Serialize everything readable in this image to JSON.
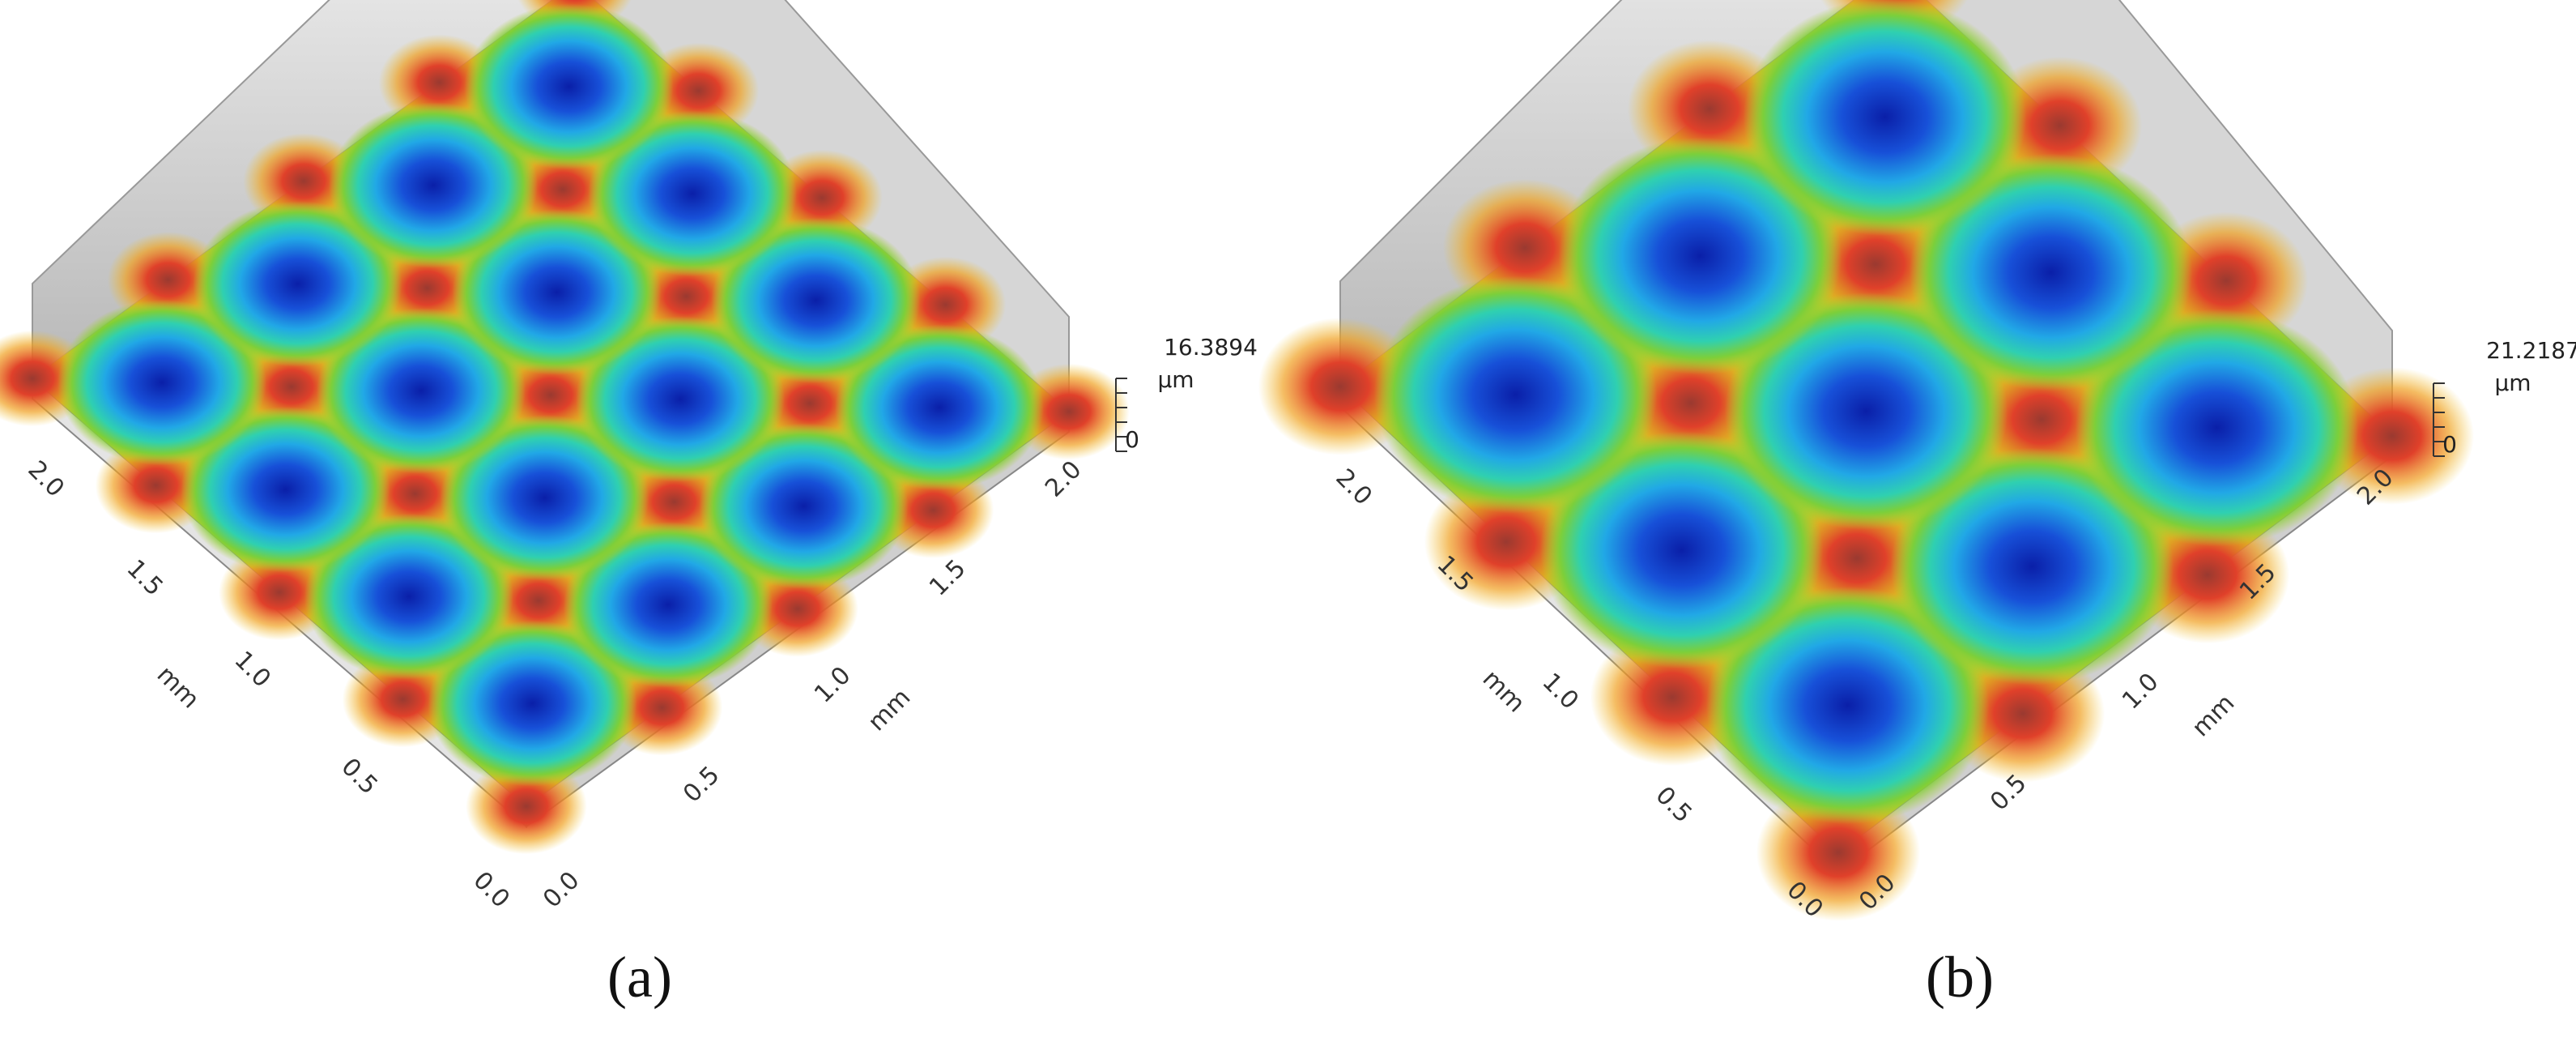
{
  "panels": [
    {
      "caption": "(a)",
      "z_max": "16.3894",
      "z_unit": "µm",
      "z_min": "0",
      "left_axis": {
        "ticks": [
          "0.0",
          "0.5",
          "1.0",
          "1.5",
          "2.0"
        ],
        "label": "mm"
      },
      "right_axis": {
        "ticks": [
          "0.0",
          "0.5",
          "1.0",
          "1.5",
          "2.0"
        ],
        "label": "mm"
      }
    },
    {
      "caption": "(b)",
      "z_max": "21.2187",
      "z_unit": "µm",
      "z_min": "0",
      "left_axis": {
        "ticks": [
          "0.0",
          "0.5",
          "1.0",
          "1.5",
          "2.0"
        ],
        "label": "mm"
      },
      "right_axis": {
        "ticks": [
          "0.0",
          "0.5",
          "1.0",
          "1.5",
          "2.0"
        ],
        "label": "mm"
      }
    }
  ]
}
